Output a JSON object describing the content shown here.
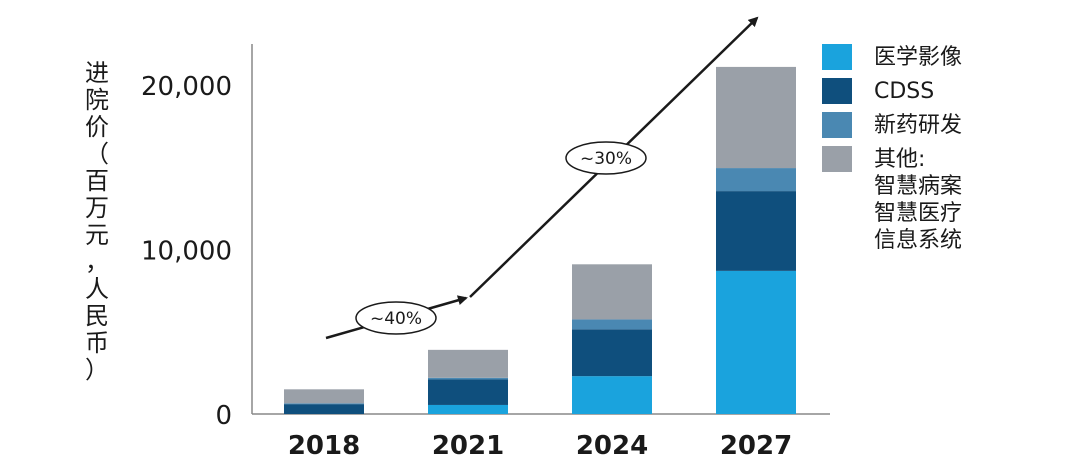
{
  "chart_data": {
    "type": "bar",
    "stacked": true,
    "categories": [
      "2018",
      "2021",
      "2024",
      "2027"
    ],
    "series": [
      {
        "name": "医学影像",
        "color": "#1aa3dd",
        "values": [
          0,
          550,
          2300,
          8700
        ]
      },
      {
        "name": "CDSS",
        "color": "#0f4f7d",
        "values": [
          600,
          1550,
          2850,
          4850
        ]
      },
      {
        "name": "新药研发",
        "color": "#4a88b2",
        "values": [
          50,
          100,
          600,
          1400
        ]
      },
      {
        "name": "其他:",
        "sub_labels": [
          "智慧病案",
          "智慧医疗",
          "信息系统"
        ],
        "color": "#9aa0a8",
        "values": [
          850,
          1700,
          3350,
          6150
        ]
      }
    ],
    "ylabel": "进院价（百万元，人民币）",
    "ylabel_chars": [
      "进",
      "院",
      "价",
      "（",
      "百",
      "万",
      "元",
      "，",
      "人",
      "民",
      "币",
      "）"
    ],
    "yticks": [
      0,
      10000,
      20000
    ],
    "ytick_labels": [
      "0",
      "10,000",
      "20,000"
    ],
    "ylim": [
      0,
      21500
    ],
    "legend_position": "right",
    "growth_annotations": [
      {
        "label": "~40%",
        "from": "2018",
        "to": "2021"
      },
      {
        "label": "~30%",
        "from": "2021",
        "to": "2027"
      }
    ]
  }
}
